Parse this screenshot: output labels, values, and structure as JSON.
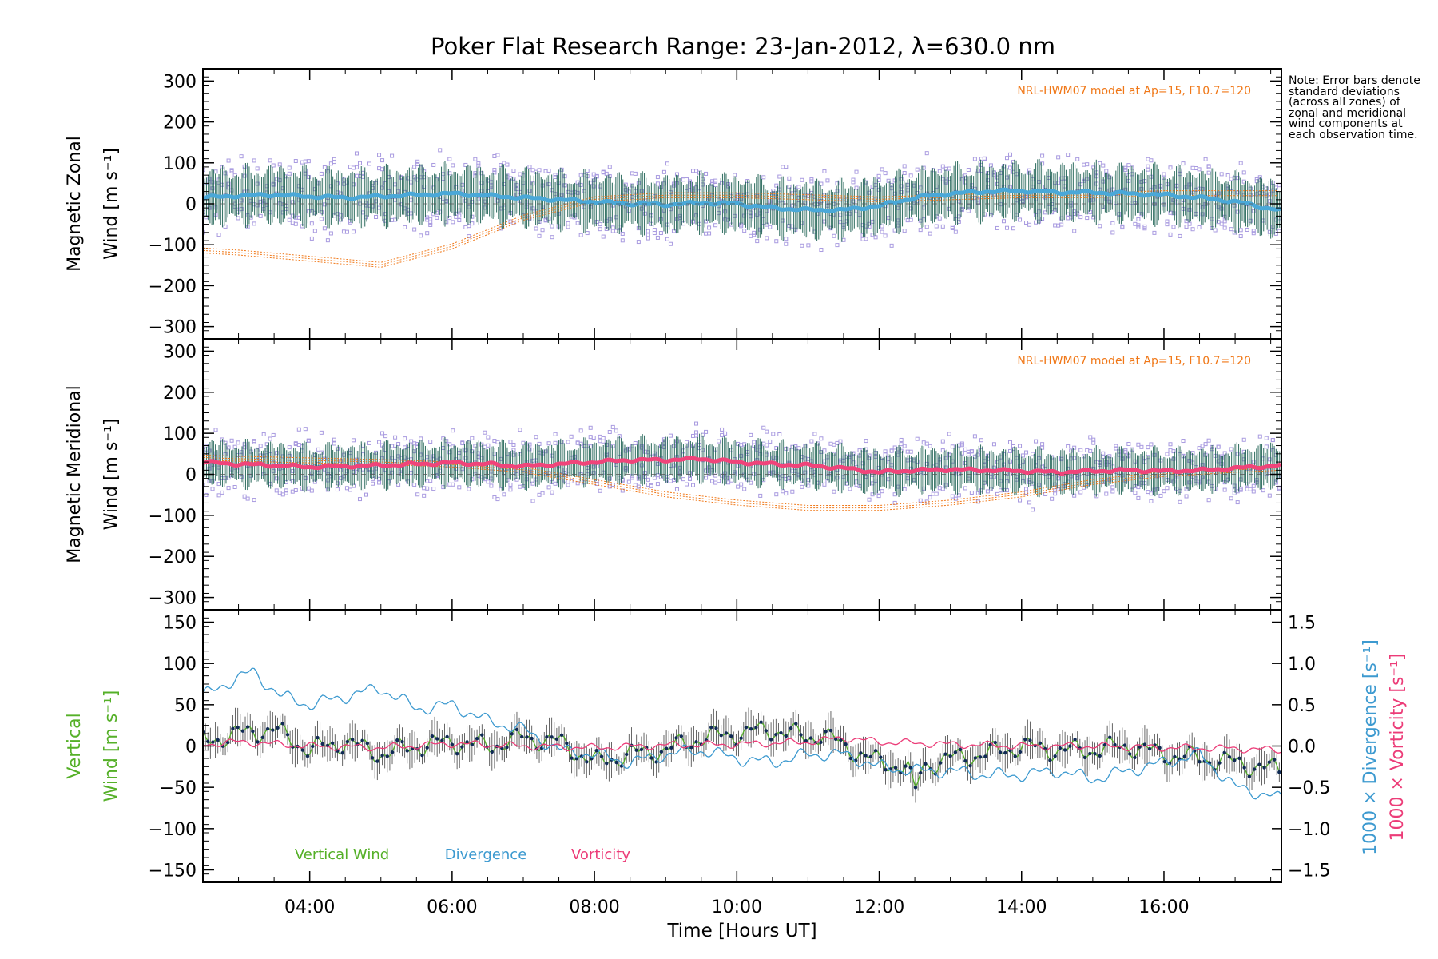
{
  "title": "Poker Flat Research Range: 23-Jan-2012, λ=630.0 nm",
  "note": "Note: Error bars denote standard deviations (across all zones) of zonal and meridional wind components at each observation time.",
  "colors": {
    "zonal_mean": "#4aa8d8",
    "meridional_mean": "#f0447a",
    "zone_points": "#a99be0",
    "error_bars": "#1a5f50",
    "model": "#f07818",
    "vertical": "#55b028",
    "divergence": "#3d9ad0",
    "vorticity": "#ec3c78",
    "vertical_points": "#102a55"
  },
  "chart_data": [
    {
      "type": "scatter",
      "panel": "zonal",
      "ylabel": [
        "Magnetic Zonal",
        "Wind [m s⁻¹]"
      ],
      "yticks": [
        "300",
        "200",
        "100",
        "0",
        "−100",
        "−200",
        "−300"
      ],
      "ylim": [
        -330,
        330
      ],
      "xlim": [
        2.5,
        17.65
      ],
      "annotation": "NRL-HWM07 model at Ap=15, F10.7=120",
      "series": [
        {
          "role": "mean",
          "x": [
            2.5,
            3,
            3.5,
            4,
            4.5,
            5,
            5.5,
            6,
            6.5,
            7,
            7.5,
            8,
            8.5,
            9,
            9.5,
            10,
            10.5,
            11,
            11.5,
            12,
            12.5,
            13,
            13.5,
            14,
            14.5,
            15,
            15.5,
            16,
            16.5,
            17,
            17.5,
            17.65
          ],
          "y": [
            15,
            20,
            22,
            18,
            15,
            18,
            22,
            25,
            20,
            15,
            10,
            5,
            0,
            -2,
            2,
            0,
            -10,
            -15,
            -15,
            -5,
            15,
            25,
            30,
            32,
            28,
            28,
            25,
            22,
            15,
            5,
            -12,
            -15
          ]
        },
        {
          "role": "model",
          "x": [
            2.5,
            3,
            4,
            5,
            6,
            7,
            8,
            9,
            10,
            11,
            12,
            13,
            14,
            15,
            16,
            17,
            17.65
          ],
          "y": [
            -120,
            -125,
            -140,
            -155,
            -110,
            -40,
            5,
            15,
            15,
            10,
            5,
            10,
            15,
            15,
            20,
            20,
            20
          ]
        }
      ]
    },
    {
      "type": "scatter",
      "panel": "meridional",
      "ylabel": [
        "Magnetic Meridional",
        "Wind [m s⁻¹]"
      ],
      "yticks": [
        "300",
        "200",
        "100",
        "0",
        "−100",
        "−200",
        "−300"
      ],
      "ylim": [
        -330,
        330
      ],
      "xlim": [
        2.5,
        17.65
      ],
      "annotation": "NRL-HWM07 model at Ap=15, F10.7=120",
      "series": [
        {
          "role": "mean",
          "x": [
            2.5,
            3,
            3.5,
            4,
            4.5,
            5,
            5.5,
            6,
            6.5,
            7,
            7.5,
            8,
            8.5,
            9,
            9.5,
            10,
            10.5,
            11,
            11.5,
            12,
            12.5,
            13,
            13.5,
            14,
            14.5,
            15,
            15.5,
            16,
            16.5,
            17,
            17.5,
            17.65
          ],
          "y": [
            30,
            25,
            22,
            18,
            20,
            22,
            25,
            28,
            25,
            20,
            25,
            30,
            35,
            35,
            38,
            30,
            25,
            22,
            15,
            5,
            10,
            12,
            10,
            8,
            5,
            8,
            10,
            8,
            10,
            15,
            20,
            22
          ]
        },
        {
          "role": "model",
          "x": [
            2.5,
            3,
            4,
            5,
            6,
            7,
            8,
            9,
            10,
            11,
            12,
            13,
            14,
            15,
            16,
            17,
            17.65
          ],
          "y": [
            35,
            32,
            28,
            24,
            18,
            5,
            -25,
            -55,
            -75,
            -88,
            -88,
            -75,
            -55,
            -25,
            -5,
            5,
            10
          ]
        }
      ]
    },
    {
      "type": "line",
      "panel": "vertical",
      "ylabel": [
        "Vertical",
        "Wind [m s⁻¹]"
      ],
      "yticks": [
        "150",
        "100",
        "50",
        "0",
        "−50",
        "−100",
        "−150"
      ],
      "ylim": [
        -165,
        165
      ],
      "xlim": [
        2.5,
        17.65
      ],
      "xticks": [
        "04:00",
        "06:00",
        "08:00",
        "10:00",
        "12:00",
        "14:00",
        "16:00"
      ],
      "xlabel": "Time [Hours UT]",
      "y2label": [
        "1000 × Divergence [s⁻¹]",
        "1000 × Vorticity [s⁻¹]"
      ],
      "y2ticks": [
        "1.5",
        "1.0",
        "0.5",
        "0.0",
        "−0.5",
        "−1.0",
        "−1.5"
      ],
      "y2lim": [
        -1.65,
        1.65
      ],
      "legend": [
        "Vertical Wind",
        "Divergence",
        "Vorticity"
      ],
      "series": [
        {
          "name": "Vertical Wind",
          "x": [
            2.5,
            3,
            3.5,
            4,
            4.5,
            5,
            5.5,
            6,
            6.5,
            7,
            7.5,
            8,
            8.5,
            9,
            9.5,
            10,
            10.5,
            11,
            11.2,
            11.5,
            12,
            12.4,
            12.5,
            12.6,
            13,
            13.5,
            14,
            14.5,
            15,
            15.5,
            16,
            16.5,
            17,
            17.65
          ],
          "y": [
            5,
            15,
            20,
            -5,
            5,
            -10,
            0,
            5,
            0,
            10,
            5,
            -20,
            -10,
            -5,
            10,
            15,
            20,
            10,
            15,
            0,
            -20,
            -25,
            -60,
            -25,
            -15,
            -10,
            0,
            -5,
            -5,
            0,
            -10,
            -15,
            -20,
            -30
          ]
        },
        {
          "name": "Divergence",
          "axis": "right",
          "x": [
            2.5,
            2.8,
            3.2,
            3.6,
            4,
            4.5,
            5,
            5.5,
            6,
            6.5,
            7,
            7.5,
            8,
            8.5,
            9,
            9.5,
            10,
            10.5,
            11,
            11.5,
            12,
            12.5,
            13,
            13.5,
            14,
            14.5,
            15,
            15.5,
            16,
            16.5,
            17,
            17.5,
            17.65
          ],
          "y": [
            0.6,
            0.75,
            0.9,
            0.6,
            0.5,
            0.6,
            0.7,
            0.45,
            0.5,
            0.3,
            0.2,
            -0.05,
            -0.1,
            -0.2,
            -0.1,
            -0.05,
            -0.15,
            -0.2,
            -0.1,
            -0.1,
            -0.25,
            -0.3,
            -0.3,
            -0.35,
            -0.35,
            -0.3,
            -0.4,
            -0.3,
            -0.2,
            -0.1,
            -0.5,
            -0.6,
            -0.65
          ]
        },
        {
          "name": "Vorticity",
          "axis": "right",
          "x": [
            2.5,
            3,
            4,
            5,
            6,
            7,
            8,
            9,
            10,
            11,
            11.5,
            12,
            13,
            14,
            15,
            16,
            17,
            17.65
          ],
          "y": [
            0.02,
            0.05,
            0,
            -0.02,
            0.03,
            0,
            -0.02,
            0.01,
            0.02,
            0.05,
            0.1,
            0.05,
            0.02,
            0,
            0,
            -0.02,
            -0.03,
            -0.05
          ]
        }
      ]
    }
  ]
}
